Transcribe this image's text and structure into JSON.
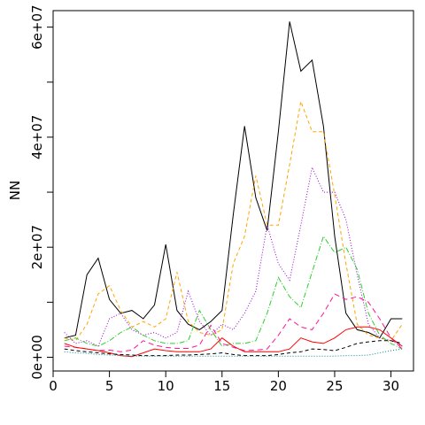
{
  "chart_data": {
    "type": "line",
    "title": "",
    "xlabel": "",
    "ylabel": "NN",
    "xlim": [
      0,
      32
    ],
    "ylim": [
      -2500000,
      63000000
    ],
    "x_ticks": [
      {
        "value": 0,
        "label": "0"
      },
      {
        "value": 5,
        "label": "5"
      },
      {
        "value": 10,
        "label": "10"
      },
      {
        "value": 15,
        "label": "15"
      },
      {
        "value": 20,
        "label": "20"
      },
      {
        "value": 25,
        "label": "25"
      },
      {
        "value": 30,
        "label": "30"
      }
    ],
    "y_ticks": [
      {
        "value": 0,
        "label": "0e+00"
      },
      {
        "value": 10000000,
        "label": ""
      },
      {
        "value": 20000000,
        "label": "2e+07"
      },
      {
        "value": 30000000,
        "label": ""
      },
      {
        "value": 40000000,
        "label": "4e+07"
      },
      {
        "value": 50000000,
        "label": ""
      },
      {
        "value": 60000000,
        "label": "6e+07"
      }
    ],
    "grid": false,
    "legend": "none",
    "x": [
      1,
      2,
      3,
      4,
      5,
      6,
      7,
      8,
      9,
      10,
      11,
      12,
      13,
      14,
      15,
      16,
      17,
      18,
      19,
      20,
      21,
      22,
      23,
      24,
      25,
      26,
      27,
      28,
      29,
      30,
      31
    ],
    "series": [
      {
        "color": "#000000",
        "dash": "",
        "values": [
          3500000,
          4000000,
          15000000,
          18000000,
          10500000,
          8000000,
          8500000,
          7000000,
          9500000,
          20500000,
          8500000,
          6000000,
          5000000,
          6500000,
          8500000,
          26000000,
          42000000,
          29000000,
          23000000,
          41000000,
          61000000,
          52000000,
          54000000,
          42000000,
          22000000,
          8000000,
          5000000,
          4500000,
          3500000,
          7000000,
          7000000
        ]
      },
      {
        "color": "#FFA500",
        "dash": "4,3",
        "values": [
          3500000,
          3000000,
          6000000,
          11500000,
          13000000,
          8500000,
          5500000,
          6500000,
          5500000,
          7000000,
          15500000,
          6500000,
          4500000,
          4000000,
          5000000,
          17000000,
          22000000,
          33000000,
          24000000,
          24000000,
          35000000,
          46500000,
          41000000,
          41000000,
          29500000,
          17000000,
          6000000,
          4000000,
          3500000,
          3000000,
          6000000
        ]
      },
      {
        "color": "#9400D3",
        "dash": "1,2",
        "values": [
          4500000,
          2500000,
          3000000,
          2000000,
          7000000,
          8000000,
          5000000,
          4000000,
          4500000,
          3500000,
          4500000,
          12000000,
          6500000,
          4000000,
          6000000,
          5000000,
          8000000,
          12000000,
          24000000,
          17000000,
          14000000,
          24000000,
          34500000,
          30000000,
          30000000,
          25000000,
          15000000,
          6000000,
          3500000,
          3000000,
          2000000
        ]
      },
      {
        "color": "#32CD32",
        "dash": "6,2,1,2",
        "values": [
          3000000,
          3500000,
          2500000,
          2000000,
          3000000,
          4500000,
          5500000,
          4000000,
          3000000,
          2500000,
          2500000,
          3000000,
          8500000,
          5000000,
          2000000,
          2500000,
          2500000,
          3000000,
          8000000,
          14500000,
          11000000,
          9000000,
          15500000,
          22000000,
          19000000,
          20000000,
          16000000,
          8000000,
          4000000,
          2500000,
          1500000
        ]
      },
      {
        "color": "#FF1493",
        "dash": "6,4",
        "values": [
          2000000,
          1800000,
          1500000,
          1200000,
          1300000,
          1000000,
          1300000,
          3000000,
          2200000,
          1800000,
          1600000,
          1600000,
          2200000,
          5800000,
          2500000,
          1800000,
          1200000,
          1300000,
          1500000,
          4000000,
          7000000,
          5500000,
          5000000,
          8000000,
          11500000,
          10500000,
          11000000,
          10000000,
          7000000,
          3500000,
          1500000
        ]
      },
      {
        "color": "#FF0000",
        "dash": "",
        "values": [
          2500000,
          1800000,
          1500000,
          1200000,
          800000,
          300000,
          100000,
          800000,
          1500000,
          1200000,
          1000000,
          1000000,
          1000000,
          1500000,
          3500000,
          2000000,
          1000000,
          1000000,
          1000000,
          1000000,
          1500000,
          3500000,
          2800000,
          2500000,
          3500000,
          5000000,
          5500000,
          5500000,
          5000000,
          3500000,
          2000000
        ]
      },
      {
        "color": "#000000",
        "dash": "4,3",
        "values": [
          1500000,
          1200000,
          1000000,
          800000,
          600000,
          500000,
          400000,
          300000,
          300000,
          300000,
          400000,
          400000,
          500000,
          600000,
          800000,
          500000,
          300000,
          300000,
          300000,
          500000,
          800000,
          1000000,
          1500000,
          1400000,
          1200000,
          1800000,
          2500000,
          2800000,
          3000000,
          3000000,
          2500000
        ]
      },
      {
        "color": "#008B8B",
        "dash": "1,2",
        "values": [
          1000000,
          800000,
          700000,
          500000,
          400000,
          300000,
          200000,
          200000,
          200000,
          200000,
          200000,
          200000,
          200000,
          200000,
          200000,
          200000,
          200000,
          200000,
          200000,
          200000,
          200000,
          200000,
          200000,
          200000,
          200000,
          300000,
          300000,
          400000,
          800000,
          1200000,
          1500000
        ]
      }
    ]
  }
}
